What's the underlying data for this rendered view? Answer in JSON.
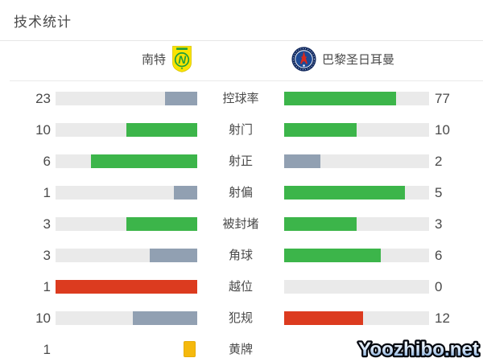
{
  "page": {
    "title": "技术统计",
    "background": "#ffffff"
  },
  "teams": {
    "home": {
      "name": "南特"
    },
    "away": {
      "name": "巴黎圣日耳曼"
    }
  },
  "colors": {
    "green": "#3CB54A",
    "gray": "#91A0B2",
    "red": "#DC3B1F",
    "yellow": "#F5B90D",
    "track": "#EAEAEA"
  },
  "stats": [
    {
      "label": "控球率",
      "home": {
        "value": "23",
        "pct": 23,
        "color": "gray"
      },
      "away": {
        "value": "77",
        "pct": 77,
        "color": "green"
      }
    },
    {
      "label": "射门",
      "home": {
        "value": "10",
        "pct": 50,
        "color": "green"
      },
      "away": {
        "value": "10",
        "pct": 50,
        "color": "green"
      }
    },
    {
      "label": "射正",
      "home": {
        "value": "6",
        "pct": 75,
        "color": "green"
      },
      "away": {
        "value": "2",
        "pct": 25,
        "color": "gray"
      }
    },
    {
      "label": "射偏",
      "home": {
        "value": "1",
        "pct": 16.7,
        "color": "gray"
      },
      "away": {
        "value": "5",
        "pct": 83.3,
        "color": "green"
      }
    },
    {
      "label": "被封堵",
      "home": {
        "value": "3",
        "pct": 50,
        "color": "green"
      },
      "away": {
        "value": "3",
        "pct": 50,
        "color": "green"
      }
    },
    {
      "label": "角球",
      "home": {
        "value": "3",
        "pct": 33.3,
        "color": "gray"
      },
      "away": {
        "value": "6",
        "pct": 66.7,
        "color": "green"
      }
    },
    {
      "label": "越位",
      "home": {
        "value": "1",
        "pct": 100,
        "color": "red"
      },
      "away": {
        "value": "0",
        "pct": 0,
        "color": "green"
      }
    },
    {
      "label": "犯规",
      "home": {
        "value": "10",
        "pct": 45.5,
        "color": "gray"
      },
      "away": {
        "value": "12",
        "pct": 54.5,
        "color": "red"
      }
    },
    {
      "label": "黄牌",
      "home": {
        "value": "1",
        "card": true,
        "color": "yellow"
      },
      "away": null
    }
  ],
  "watermark": {
    "text": "Yoozhibo.net"
  },
  "chart_data": {
    "type": "bar",
    "orientation": "horizontal-paired",
    "title": "技术统计",
    "categories": [
      "控球率",
      "射门",
      "射正",
      "射偏",
      "被封堵",
      "角球",
      "越位",
      "犯规",
      "黄牌"
    ],
    "series": [
      {
        "name": "南特",
        "values": [
          23,
          10,
          6,
          1,
          3,
          3,
          1,
          10,
          1
        ]
      },
      {
        "name": "巴黎圣日耳曼",
        "values": [
          77,
          10,
          2,
          5,
          3,
          6,
          0,
          12,
          null
        ]
      }
    ],
    "value_labels_shown": true,
    "grid": false,
    "legend_position": "top",
    "notes": "Each pair of bars is scaled to value/(home+away); winner bar green, loser gray-blue, offsides/fouls highlighted red, yellow card shown as card icon"
  }
}
